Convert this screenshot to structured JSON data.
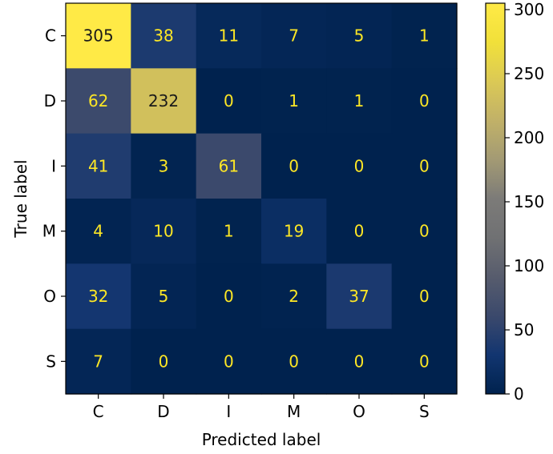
{
  "chart_data": {
    "type": "heatmap",
    "title": "",
    "xlabel": "Predicted label",
    "ylabel": "True label",
    "x_categories": [
      "C",
      "D",
      "I",
      "M",
      "O",
      "S"
    ],
    "y_categories": [
      "C",
      "D",
      "I",
      "M",
      "O",
      "S"
    ],
    "matrix": [
      [
        305,
        38,
        11,
        7,
        5,
        1
      ],
      [
        62,
        232,
        0,
        1,
        1,
        0
      ],
      [
        41,
        3,
        61,
        0,
        0,
        0
      ],
      [
        4,
        10,
        1,
        19,
        0,
        0
      ],
      [
        32,
        5,
        0,
        2,
        37,
        0
      ],
      [
        7,
        0,
        0,
        0,
        0,
        0
      ]
    ],
    "colormap": "cividis",
    "value_range": [
      0,
      305
    ],
    "colorbar": {
      "ticks": [
        0,
        50,
        100,
        150,
        200,
        250,
        300
      ],
      "tick_labels": [
        "0",
        "50",
        "100",
        "150",
        "200",
        "250",
        "300"
      ],
      "placement": "right"
    },
    "annotation_color": "#fde725",
    "grid": false
  }
}
